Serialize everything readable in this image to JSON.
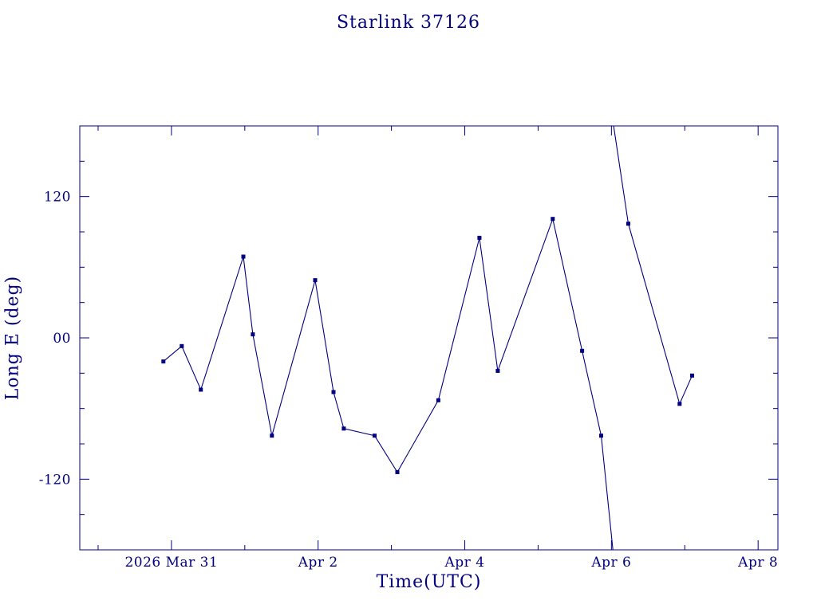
{
  "page": {
    "background": "#ffffff"
  },
  "chart_data": {
    "type": "line",
    "title": "Starlink 37126",
    "xlabel": "Time(UTC)",
    "ylabel": "Long E (deg)",
    "color": "#000080",
    "background": "#ffffff",
    "x_units": "days after 2026 Mar 31 00:00 UTC",
    "xlim": [
      -1.25,
      8.27
    ],
    "ylim": [
      -180,
      180
    ],
    "grid": false,
    "legend": false,
    "x_ticks": {
      "major": [
        {
          "value": 0,
          "label": "2026 Mar 31"
        },
        {
          "value": 2,
          "label": "Apr 2"
        },
        {
          "value": 4,
          "label": "Apr 4"
        },
        {
          "value": 6,
          "label": "Apr 6"
        },
        {
          "value": 8,
          "label": "Apr 8"
        }
      ],
      "minor": [
        -1,
        1,
        3,
        5,
        7
      ]
    },
    "y_ticks": {
      "major": [
        {
          "value": -120,
          "label": "-120"
        },
        {
          "value": 0,
          "label": "00"
        },
        {
          "value": 120,
          "label": "120"
        }
      ],
      "minor": [
        -150,
        -90,
        -60,
        -30,
        30,
        60,
        90,
        150
      ]
    },
    "series": [
      {
        "name": "Long E",
        "marker": "square",
        "segments": [
          {
            "comment": "main track, ends wrapping off bottom of +/-180 range",
            "points": [
              [
                -0.11,
                -20
              ],
              [
                0.14,
                -7
              ],
              [
                0.4,
                -44
              ],
              [
                0.98,
                69
              ],
              [
                1.11,
                3
              ],
              [
                1.37,
                -83
              ],
              [
                1.96,
                49
              ],
              [
                2.21,
                -46
              ],
              [
                2.35,
                -77
              ],
              [
                2.77,
                -83
              ],
              [
                3.08,
                -114
              ],
              [
                3.64,
                -53
              ],
              [
                4.2,
                85
              ],
              [
                4.45,
                -28
              ],
              [
                5.2,
                101
              ],
              [
                5.6,
                -11
              ],
              [
                5.86,
                -83
              ],
              [
                6.02,
                -180
              ]
            ]
          },
          {
            "comment": "re-enters from top after longitude wrap",
            "points": [
              [
                6.03,
                180
              ],
              [
                6.23,
                97
              ],
              [
                6.93,
                -56
              ],
              [
                7.1,
                -32
              ]
            ]
          }
        ],
        "markers": [
          [
            -0.11,
            -20
          ],
          [
            0.14,
            -7
          ],
          [
            0.4,
            -44
          ],
          [
            0.98,
            69
          ],
          [
            1.11,
            3
          ],
          [
            1.37,
            -83
          ],
          [
            1.96,
            49
          ],
          [
            2.21,
            -46
          ],
          [
            2.35,
            -77
          ],
          [
            2.77,
            -83
          ],
          [
            3.08,
            -114
          ],
          [
            3.64,
            -53
          ],
          [
            4.2,
            85
          ],
          [
            4.45,
            -28
          ],
          [
            5.2,
            101
          ],
          [
            5.6,
            -11
          ],
          [
            5.86,
            -83
          ],
          [
            6.23,
            97
          ],
          [
            6.93,
            -56
          ],
          [
            7.1,
            -32
          ]
        ]
      }
    ]
  }
}
